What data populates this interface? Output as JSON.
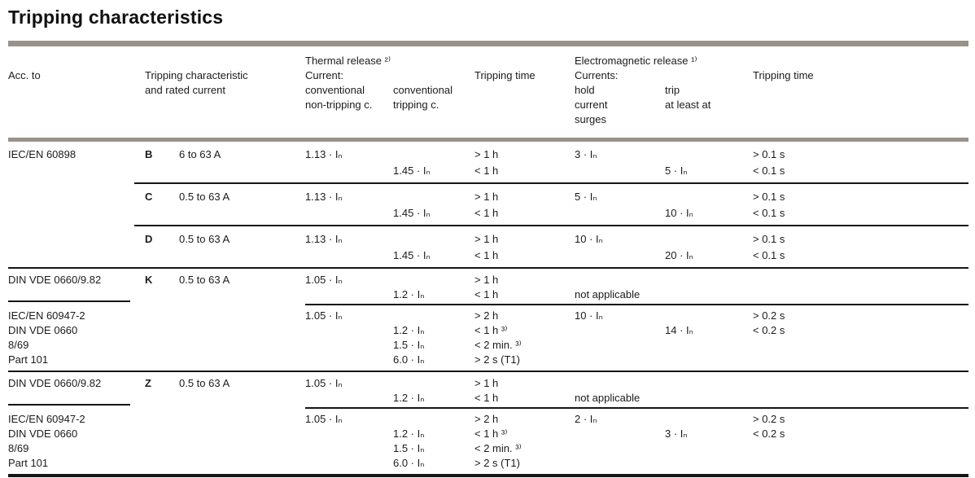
{
  "page": {
    "title": "Tripping characteristics"
  },
  "colors": {
    "header_bar": "#9a9189",
    "row_rule": "#161616",
    "text": "#1b1b1b"
  },
  "header": {
    "acc_to": "Acc. to",
    "tripping_characteristic_l1": "Tripping characteristic",
    "tripping_characteristic_l2": "and rated current",
    "thermal": {
      "title": "Thermal release ²⁾",
      "current_label": "Current:",
      "nontripping_l1": "conventional",
      "nontripping_l2": "non-tripping c.",
      "tripping_l1": "conventional",
      "tripping_l2": "tripping c.",
      "time_label": "Tripping time"
    },
    "em": {
      "title": "Electromagnetic release ¹⁾",
      "currents_label": "Currents:",
      "hold_l1": "hold",
      "hold_l2": "current",
      "hold_l3": "surges",
      "trip_l1": "trip",
      "trip_l2": "at least at",
      "time_label": "Tripping time"
    }
  },
  "table": {
    "blocks": [
      {
        "acc": [
          "IEC/EN 60898"
        ],
        "char": "B",
        "rated": "6 to 63 A",
        "lines": [
          [
            "1.13 · Iₙ",
            "",
            "> 1 h",
            "3 · Iₙ",
            "",
            "> 0.1 s"
          ],
          [
            "",
            "1.45 · Iₙ",
            "< 1 h",
            "",
            "5 · Iₙ",
            "< 0.1 s"
          ]
        ]
      },
      {
        "char": "C",
        "rated": "0.5 to 63 A",
        "lines": [
          [
            "1.13 · Iₙ",
            "",
            "> 1 h",
            "5 · Iₙ",
            "",
            "> 0.1 s"
          ],
          [
            "",
            "1.45 · Iₙ",
            "< 1 h",
            "",
            "10 · Iₙ",
            "< 0.1 s"
          ]
        ]
      },
      {
        "char": "D",
        "rated": "0.5 to 63 A",
        "lines": [
          [
            "1.13 · Iₙ",
            "",
            "> 1 h",
            "10 · Iₙ",
            "",
            "> 0.1 s"
          ],
          [
            "",
            "1.45 · Iₙ",
            "< 1 h",
            "",
            "20 · Iₙ",
            "< 0.1 s"
          ]
        ]
      },
      {
        "acc": [
          "DIN VDE 0660/9.82"
        ],
        "char": "K",
        "rated": "0.5 to 63 A",
        "lines": [
          [
            "1.05 · Iₙ",
            "",
            "> 1 h",
            "",
            "",
            ""
          ],
          [
            "",
            "1.2 · Iₙ",
            "< 1 h",
            "not applicable",
            "",
            ""
          ]
        ]
      },
      {
        "acc": [
          "IEC/EN 60947-2",
          "DIN VDE 0660",
          "8/69",
          "Part 101"
        ],
        "lines": [
          [
            "1.05 · Iₙ",
            "",
            "> 2 h",
            "10 · Iₙ",
            "",
            "> 0.2 s"
          ],
          [
            "",
            "1.2 · Iₙ",
            "< 1 h ³⁾",
            "",
            "14 · Iₙ",
            "< 0.2 s"
          ],
          [
            "",
            "1.5 · Iₙ",
            "< 2 min. ³⁾",
            "",
            "",
            ""
          ],
          [
            "",
            "6.0 · Iₙ",
            "> 2 s (T1)",
            "",
            "",
            ""
          ]
        ]
      },
      {
        "acc": [
          "DIN VDE 0660/9.82"
        ],
        "char": "Z",
        "rated": "0.5 to 63 A",
        "lines": [
          [
            "1.05 · Iₙ",
            "",
            "> 1 h",
            "",
            "",
            ""
          ],
          [
            "",
            "1.2 · Iₙ",
            "< 1 h",
            "not applicable",
            "",
            ""
          ]
        ]
      },
      {
        "acc": [
          "IEC/EN 60947-2",
          "DIN VDE 0660",
          "8/69",
          "Part 101"
        ],
        "lines": [
          [
            "1.05 · Iₙ",
            "",
            "> 2 h",
            "2 · Iₙ",
            "",
            "> 0.2 s"
          ],
          [
            "",
            "1.2 · Iₙ",
            "< 1 h ³⁾",
            "",
            "3 · Iₙ",
            "< 0.2 s"
          ],
          [
            "",
            "1.5 · Iₙ",
            "< 2 min. ³⁾",
            "",
            "",
            ""
          ],
          [
            "",
            "6.0 · Iₙ",
            "> 2 s (T1)",
            "",
            "",
            ""
          ]
        ]
      }
    ]
  }
}
